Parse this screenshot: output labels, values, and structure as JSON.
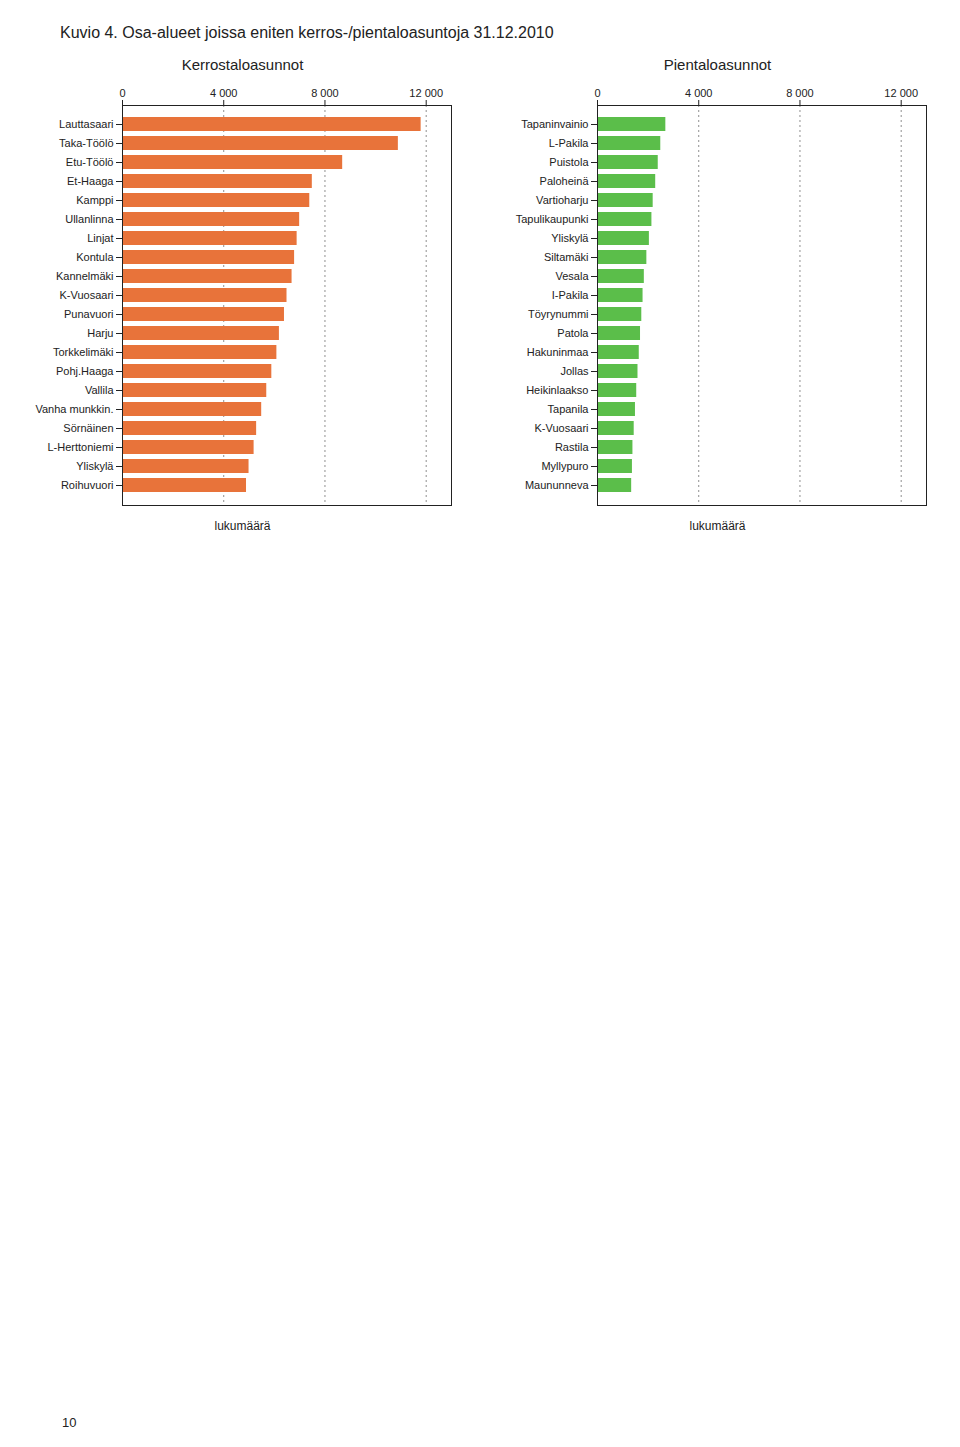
{
  "title": "Kuvio 4.  Osa-alueet joissa eniten kerros-/pientaloasuntoja 31.12.2010",
  "annotations": [
    "10"
  ],
  "chart_data": [
    {
      "type": "bar",
      "orientation": "horizontal",
      "title": "Kerrostaloasunnot",
      "xlabel": "lukumäärä",
      "categories": [
        "Lauttasaari",
        "Taka-Töölö",
        "Etu-Töölö",
        "Et-Haaga",
        "Kamppi",
        "Ullanlinna",
        "Linjat",
        "Kontula",
        "Kannelmäki",
        "K-Vuosaari",
        "Punavuori",
        "Harju",
        "Torkkelimäki",
        "Pohj.Haaga",
        "Vallila",
        "Vanha munkkin.",
        "Sörnäinen",
        "L-Herttoniemi",
        "Yliskylä",
        "Roihuvuori"
      ],
      "values": [
        11800,
        10900,
        8700,
        7500,
        7400,
        7000,
        6900,
        6800,
        6700,
        6500,
        6400,
        6200,
        6100,
        5900,
        5700,
        5500,
        5300,
        5200,
        5000,
        4900
      ],
      "color": "#E8733A",
      "xlim": [
        0,
        13000
      ],
      "xticks": [
        0,
        {
          "value": 4000,
          "label": "4 000"
        },
        {
          "value": 8000,
          "label": "8 000"
        },
        {
          "value": 12000,
          "label": "12 000"
        }
      ],
      "grid": true
    },
    {
      "type": "bar",
      "orientation": "horizontal",
      "title": "Pientaloasunnot",
      "xlabel": "lukumäärä",
      "categories": [
        "Tapaninvainio",
        "L-Pakila",
        "Puistola",
        "Paloheinä",
        "Vartioharju",
        "Tapulikaupunki",
        "Yliskylä",
        "Siltamäki",
        "Vesala",
        "I-Pakila",
        "Töyrynummi",
        "Patola",
        "Hakuninmaa",
        "Jollas",
        "Heikinlaakso",
        "Tapanila",
        "K-Vuosaari",
        "Rastila",
        "Myllypuro",
        "Maununneva"
      ],
      "values": [
        2700,
        2500,
        2400,
        2300,
        2200,
        2150,
        2050,
        1950,
        1850,
        1800,
        1750,
        1700,
        1650,
        1600,
        1550,
        1500,
        1450,
        1400,
        1380,
        1350
      ],
      "color": "#5BBE4A",
      "xlim": [
        0,
        13000
      ],
      "xticks": [
        0,
        {
          "value": 4000,
          "label": "4 000"
        },
        {
          "value": 8000,
          "label": "8 000"
        },
        {
          "value": 12000,
          "label": "12 000"
        }
      ],
      "grid": true
    }
  ]
}
